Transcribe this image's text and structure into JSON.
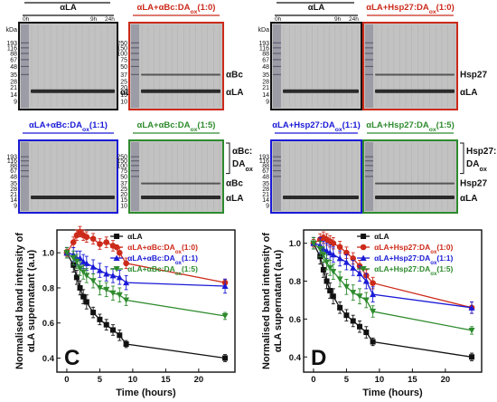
{
  "colors": {
    "black": "#111111",
    "red": "#cc2a1a",
    "blue": "#1a1ad6",
    "green": "#2e8b2e",
    "gel_background": "#b9b9b9",
    "gel_band": "#2a2a2a"
  },
  "gels": {
    "panel_C": [
      {
        "title_parts": [
          "αLA"
        ],
        "frame_color": "#111111",
        "time_start": "0h",
        "time_mid": "9h",
        "time_end": "24h",
        "kda_label": "kDa",
        "mw_markers": [
          "193",
          "116",
          "88",
          "67",
          "48",
          "35",
          "28",
          "21",
          "14",
          "9"
        ],
        "band_labels": [
          "αLA"
        ]
      },
      {
        "title_parts": [
          "αLA+αBc:DA",
          "ox",
          "(1:0)"
        ],
        "frame_color": "#cc2a1a",
        "mw_markers": [
          "250",
          "150",
          "100",
          "75",
          "50",
          "37",
          "25",
          "20",
          "15",
          "10"
        ],
        "band_labels": [
          "αBc",
          "αLA"
        ]
      },
      {
        "title_parts": [
          "αLA+αBc:DA",
          "ox",
          "(1:1)"
        ],
        "frame_color": "#1a1ad6",
        "mw_markers": [
          "193",
          "116",
          "88",
          "67",
          "48",
          "35",
          "28",
          "21",
          "14",
          "9"
        ],
        "band_labels": []
      },
      {
        "title_parts": [
          "αLA+αBc:DA",
          "ox",
          "(1:5)"
        ],
        "frame_color": "#2e8b2e",
        "mw_markers": [
          "250",
          "150",
          "100",
          "75",
          "50",
          "37",
          "25",
          "20",
          "15",
          "10"
        ],
        "band_labels": [
          "αBc",
          "αLA"
        ],
        "bracket_label": [
          "αBc:",
          "DA",
          "ox"
        ]
      }
    ],
    "panel_D": [
      {
        "title_parts": [
          "αLA"
        ],
        "frame_color": "#111111",
        "time_start": "0h",
        "time_mid": "9h",
        "time_end": "24h",
        "kda_label": "kDa",
        "mw_markers": [
          "193",
          "116",
          "88",
          "67",
          "48",
          "35",
          "28",
          "21",
          "14",
          "9"
        ],
        "band_labels": []
      },
      {
        "title_parts": [
          "αLA+Hsp27:DA",
          "ox",
          "(1:0)"
        ],
        "frame_color": "#cc2a1a",
        "mw_markers": [],
        "band_labels": [
          "Hsp27",
          "αLA"
        ]
      },
      {
        "title_parts": [
          "αLA+Hsp27:DA",
          "ox",
          "(1:1)"
        ],
        "frame_color": "#1a1ad6",
        "mw_markers": [
          "193",
          "116",
          "88",
          "67",
          "48",
          "35",
          "28",
          "21",
          "14",
          "9"
        ],
        "band_labels": []
      },
      {
        "title_parts": [
          "αLA+Hsp27:DA",
          "ox",
          "(1:5)"
        ],
        "frame_color": "#2e8b2e",
        "mw_markers": [],
        "band_labels": [
          "Hsp27",
          "αLA"
        ],
        "bracket_label": [
          "Hsp27:",
          "DA",
          "ox"
        ]
      }
    ]
  },
  "chart_data": [
    {
      "type": "line",
      "panel_letter": "C",
      "xlabel": "Time (hours)",
      "ylabel_line1": "Normalised band intensity of",
      "ylabel_line2": "αLA supernatant (a.u)",
      "xlim": [
        -1.5,
        25.5
      ],
      "ylim": [
        0.32,
        1.13
      ],
      "xticks": [
        0,
        5,
        10,
        15,
        20
      ],
      "yticks": [
        0.4,
        0.6,
        0.8,
        1.0
      ],
      "legend_position": "top-right",
      "series": [
        {
          "name_parts": [
            "αLA"
          ],
          "color": "#111111",
          "marker": "square",
          "x": [
            0,
            1,
            1.5,
            2,
            2.5,
            3,
            4,
            5,
            6,
            7,
            8,
            9,
            24
          ],
          "y": [
            1.0,
            0.93,
            0.86,
            0.8,
            0.75,
            0.72,
            0.66,
            0.62,
            0.59,
            0.56,
            0.53,
            0.48,
            0.4
          ],
          "err": [
            0.03,
            0.04,
            0.04,
            0.04,
            0.04,
            0.04,
            0.03,
            0.03,
            0.03,
            0.03,
            0.03,
            0.02,
            0.02
          ]
        },
        {
          "name_parts": [
            "αLA+αBc:DA",
            "ox",
            "(1:0)"
          ],
          "color": "#cc2a1a",
          "marker": "circle",
          "x": [
            0,
            1,
            1.5,
            2,
            2.5,
            3,
            4,
            5,
            6,
            7,
            8,
            9,
            24
          ],
          "y": [
            1.0,
            1.06,
            1.1,
            1.12,
            1.1,
            1.09,
            1.08,
            1.05,
            1.06,
            1.04,
            1.0,
            0.94,
            0.83
          ],
          "err": [
            0.02,
            0.03,
            0.03,
            0.03,
            0.03,
            0.03,
            0.03,
            0.03,
            0.03,
            0.03,
            0.03,
            0.03,
            0.02
          ]
        },
        {
          "name_parts": [
            "αLA+αBc:DA",
            "ox",
            "(1:1)"
          ],
          "color": "#1a1ad6",
          "marker": "triangle-up",
          "x": [
            0,
            1,
            1.5,
            2,
            2.5,
            3,
            4,
            5,
            6,
            7,
            8,
            9,
            24
          ],
          "y": [
            1.0,
            0.99,
            0.97,
            0.97,
            0.95,
            0.94,
            0.92,
            0.9,
            0.88,
            0.87,
            0.86,
            0.83,
            0.81
          ],
          "err": [
            0.03,
            0.04,
            0.04,
            0.04,
            0.04,
            0.04,
            0.04,
            0.04,
            0.04,
            0.04,
            0.04,
            0.04,
            0.04
          ]
        },
        {
          "name_parts": [
            "αLA+αBc:DA",
            "ox",
            "(1:5)"
          ],
          "color": "#2e8b2e",
          "marker": "triangle-down",
          "x": [
            0,
            1,
            1.5,
            2,
            2.5,
            3,
            4,
            5,
            6,
            7,
            8,
            9,
            24
          ],
          "y": [
            1.0,
            0.97,
            0.95,
            0.91,
            0.89,
            0.87,
            0.84,
            0.8,
            0.79,
            0.77,
            0.76,
            0.73,
            0.64
          ],
          "err": [
            0.03,
            0.04,
            0.04,
            0.04,
            0.04,
            0.04,
            0.04,
            0.04,
            0.04,
            0.04,
            0.04,
            0.03,
            0.02
          ]
        }
      ]
    },
    {
      "type": "line",
      "panel_letter": "D",
      "xlabel": "Time (hours)",
      "ylabel_line1": "Normalised band intensity of",
      "ylabel_line2": "αLA supernatant (a.u)",
      "xlim": [
        -1.5,
        25.5
      ],
      "ylim": [
        0.32,
        1.07
      ],
      "xticks": [
        0,
        5,
        10,
        15,
        20
      ],
      "yticks": [
        0.4,
        0.6,
        0.8,
        1.0
      ],
      "legend_position": "top-right",
      "series": [
        {
          "name_parts": [
            "αLA"
          ],
          "color": "#111111",
          "marker": "square",
          "x": [
            0,
            1,
            1.5,
            2,
            2.5,
            3,
            4,
            5,
            6,
            7,
            8,
            9,
            24
          ],
          "y": [
            1.0,
            0.93,
            0.86,
            0.8,
            0.75,
            0.72,
            0.66,
            0.62,
            0.59,
            0.56,
            0.53,
            0.48,
            0.4
          ],
          "err": [
            0.03,
            0.04,
            0.04,
            0.04,
            0.04,
            0.04,
            0.03,
            0.03,
            0.03,
            0.03,
            0.03,
            0.02,
            0.02
          ]
        },
        {
          "name_parts": [
            "αLA+Hsp27:DA",
            "ox",
            "(1:0)"
          ],
          "color": "#cc2a1a",
          "marker": "circle",
          "x": [
            0,
            1,
            1.5,
            2,
            2.5,
            3,
            4,
            5,
            6,
            7,
            8,
            9,
            24
          ],
          "y": [
            1.0,
            1.02,
            1.03,
            1.02,
            1.01,
            1.0,
            0.98,
            0.95,
            0.92,
            0.88,
            0.83,
            0.79,
            0.66
          ],
          "err": [
            0.02,
            0.03,
            0.03,
            0.03,
            0.03,
            0.03,
            0.03,
            0.03,
            0.03,
            0.03,
            0.03,
            0.03,
            0.03
          ]
        },
        {
          "name_parts": [
            "αLA+Hsp27:DA",
            "ox",
            "(1:1)"
          ],
          "color": "#1a1ad6",
          "marker": "triangle-up",
          "x": [
            0,
            1,
            1.5,
            2,
            2.5,
            3,
            4,
            5,
            6,
            7,
            8,
            9,
            24
          ],
          "y": [
            1.0,
            0.99,
            0.97,
            0.96,
            0.95,
            0.94,
            0.92,
            0.9,
            0.87,
            0.84,
            0.8,
            0.73,
            0.66
          ],
          "err": [
            0.03,
            0.04,
            0.04,
            0.04,
            0.04,
            0.04,
            0.04,
            0.04,
            0.04,
            0.04,
            0.04,
            0.04,
            0.03
          ]
        },
        {
          "name_parts": [
            "αLA+Hsp27:DA",
            "ox",
            "(1:5)"
          ],
          "color": "#2e8b2e",
          "marker": "triangle-down",
          "x": [
            0,
            1,
            1.5,
            2,
            2.5,
            3,
            4,
            5,
            6,
            7,
            8,
            9,
            24
          ],
          "y": [
            1.0,
            0.97,
            0.94,
            0.9,
            0.87,
            0.85,
            0.81,
            0.77,
            0.74,
            0.72,
            0.7,
            0.64,
            0.54
          ],
          "err": [
            0.03,
            0.04,
            0.04,
            0.04,
            0.04,
            0.04,
            0.04,
            0.04,
            0.04,
            0.04,
            0.04,
            0.03,
            0.02
          ]
        }
      ]
    }
  ]
}
